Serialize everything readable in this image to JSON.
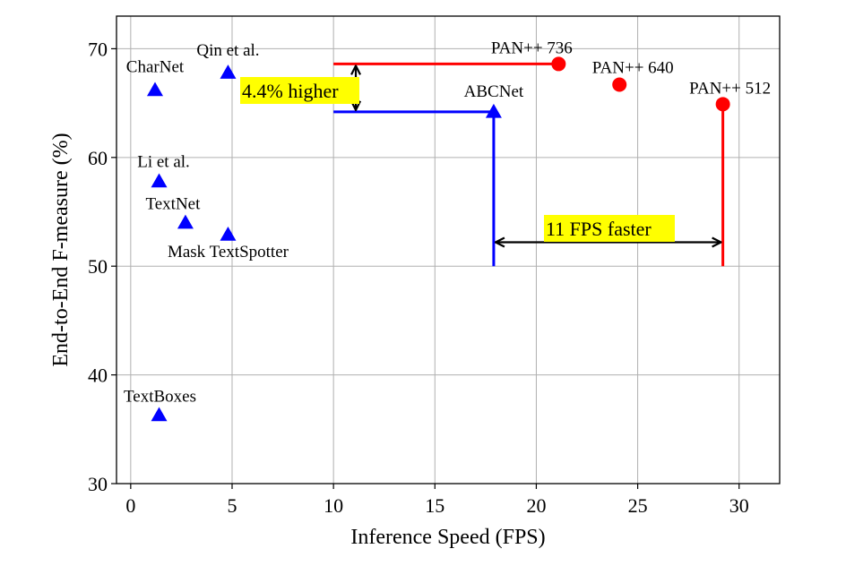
{
  "chart_data": {
    "type": "scatter",
    "title": "",
    "xlabel": "Inference Speed (FPS)",
    "ylabel": "End-to-End F-measure (%)",
    "xlim": [
      -0.7,
      32
    ],
    "ylim": [
      30,
      73
    ],
    "xticks": [
      0,
      5,
      10,
      15,
      20,
      25,
      30
    ],
    "yticks": [
      30,
      40,
      50,
      60,
      70
    ],
    "grid": true,
    "colors": {
      "triangle": "#0000ff",
      "circle": "#ff0000",
      "highlight": "#ffff00"
    },
    "series": [
      {
        "marker": "triangle",
        "points": [
          {
            "label": "CharNet",
            "x": 1.2,
            "y": 66.2
          },
          {
            "label": "Qin et al.",
            "x": 4.8,
            "y": 67.8
          },
          {
            "label": "Li et al.",
            "x": 1.4,
            "y": 57.8
          },
          {
            "label": "TextNet",
            "x": 2.7,
            "y": 54.0
          },
          {
            "label": "Mask TextSpotter",
            "x": 4.8,
            "y": 52.9
          },
          {
            "label": "TextBoxes",
            "x": 1.4,
            "y": 36.3
          },
          {
            "label": "ABCNet",
            "x": 17.9,
            "y": 64.2
          }
        ]
      },
      {
        "marker": "circle",
        "points": [
          {
            "label": "PAN++ 736",
            "x": 21.1,
            "y": 68.6
          },
          {
            "label": "PAN++ 640",
            "x": 24.1,
            "y": 66.7
          },
          {
            "label": "PAN++ 512",
            "x": 29.2,
            "y": 64.9
          }
        ]
      }
    ],
    "annotations": [
      {
        "text": "4.4% higher"
      },
      {
        "text": "11 FPS faster"
      }
    ]
  }
}
